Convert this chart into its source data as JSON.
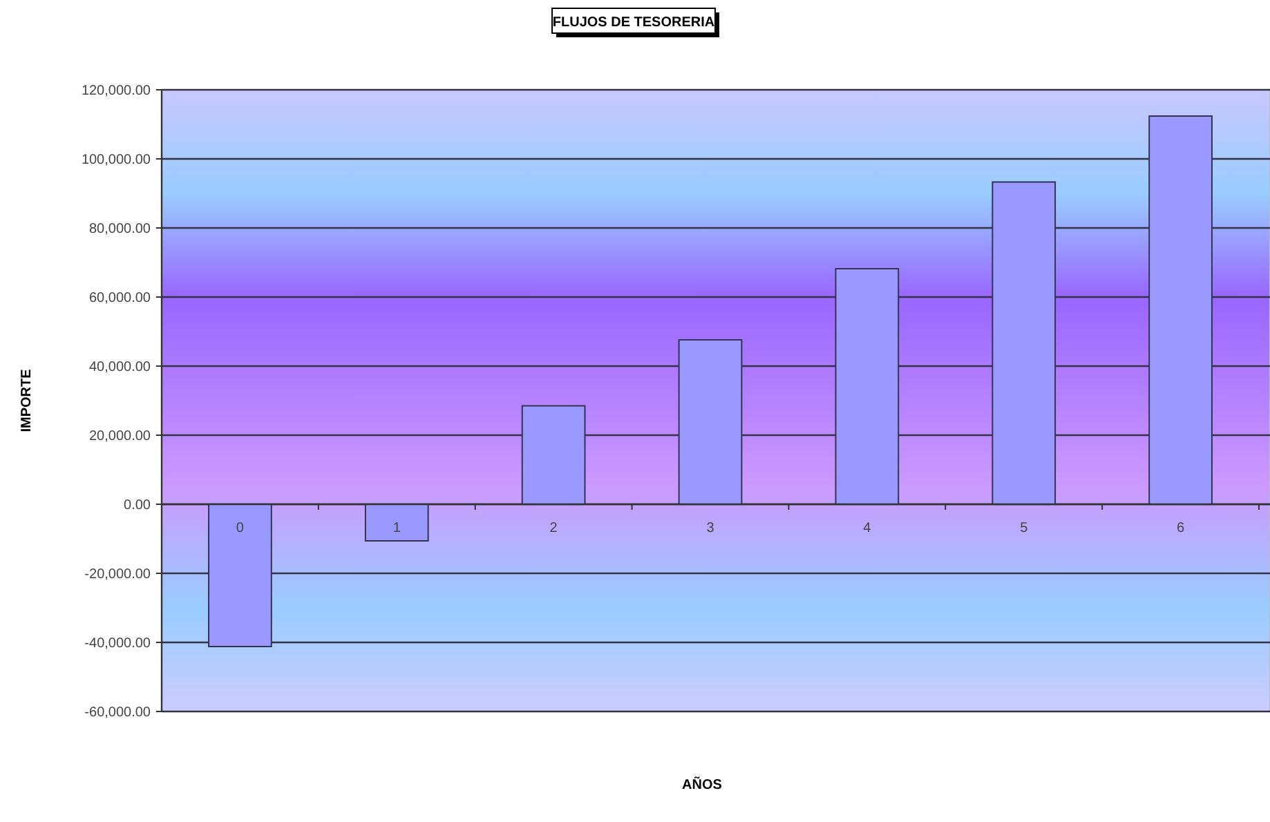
{
  "chart_data": {
    "type": "bar",
    "title": "FLUJOS DE TESORERIA",
    "xlabel": "AÑOS",
    "ylabel": "IMPORTE",
    "categories": [
      "0",
      "1",
      "2",
      "3",
      "4",
      "5",
      "6"
    ],
    "values": [
      -41200,
      -10600,
      28500,
      47600,
      68200,
      93300,
      112400
    ],
    "color": "#9999ff",
    "ylim": [
      -60000,
      120000
    ],
    "yticks": [
      {
        "value": -60000,
        "label": "-60,000.00"
      },
      {
        "value": -40000,
        "label": "-40,000.00"
      },
      {
        "value": -20000,
        "label": "-20,000.00"
      },
      {
        "value": 0,
        "label": "0.00"
      },
      {
        "value": 20000,
        "label": "20,000.00"
      },
      {
        "value": 40000,
        "label": "40,000.00"
      },
      {
        "value": 60000,
        "label": "60,000.00"
      },
      {
        "value": 80000,
        "label": "80,000.00"
      },
      {
        "value": 100000,
        "label": "100,000.00"
      },
      {
        "value": 120000,
        "label": "120,000.00"
      }
    ],
    "grid": "y"
  }
}
